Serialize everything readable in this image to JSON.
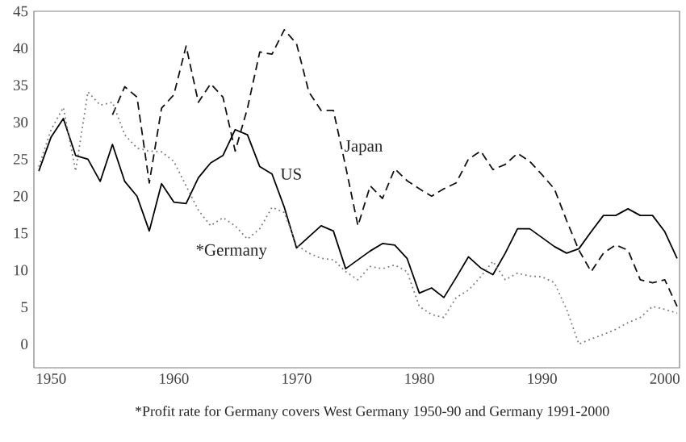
{
  "chart_data": {
    "type": "line",
    "xlim": [
      1948.6,
      2001.2
    ],
    "ylim": [
      -3.2,
      45
    ],
    "xticks": [
      1950,
      1960,
      1970,
      1980,
      1990,
      2000
    ],
    "yticks": [
      0,
      5,
      10,
      15,
      20,
      25,
      30,
      35,
      40,
      45
    ],
    "grid": false,
    "legend": false,
    "marker": "none",
    "series": [
      {
        "name": "US",
        "color": "#000000",
        "line_style": "solid",
        "x": [
          1949,
          1950,
          1951,
          1952,
          1953,
          1954,
          1955,
          1956,
          1957,
          1958,
          1959,
          1960,
          1961,
          1962,
          1963,
          1964,
          1965,
          1966,
          1967,
          1968,
          1969,
          1970,
          1971,
          1972,
          1973,
          1974,
          1975,
          1976,
          1977,
          1978,
          1979,
          1980,
          1981,
          1982,
          1983,
          1984,
          1985,
          1986,
          1987,
          1988,
          1989,
          1990,
          1991,
          1992,
          1993,
          1994,
          1995,
          1996,
          1997,
          1998,
          1999,
          2000,
          2001
        ],
        "values": [
          23.4,
          28,
          30.5,
          25.5,
          25,
          22,
          27,
          22,
          20,
          15.3,
          21.7,
          19.2,
          19,
          22.5,
          24.5,
          25.5,
          29,
          28.3,
          24,
          23,
          18.5,
          13,
          14.5,
          16,
          15.3,
          10.2,
          11.4,
          12.6,
          13.6,
          13.4,
          11.6,
          6.9,
          7.6,
          6.3,
          9,
          11.8,
          10.3,
          9.4,
          12.3,
          15.6,
          15.6,
          14.4,
          13.2,
          12.3,
          12.9,
          15.2,
          17.4,
          17.4,
          18.3,
          17.4,
          17.4,
          15.2,
          11.6
        ]
      },
      {
        "name": "Japan",
        "color": "#111111",
        "line_style": "dashed",
        "x": [
          1955,
          1956,
          1957,
          1958,
          1959,
          1960,
          1961,
          1962,
          1963,
          1964,
          1965,
          1966,
          1967,
          1968,
          1969,
          1970,
          1971,
          1972,
          1973,
          1974,
          1975,
          1976,
          1977,
          1978,
          1979,
          1980,
          1981,
          1982,
          1983,
          1984,
          1985,
          1986,
          1987,
          1988,
          1989,
          1990,
          1991,
          1992,
          1993,
          1994,
          1995,
          1996,
          1997,
          1998,
          1999,
          2000,
          2001
        ],
        "values": [
          31,
          34.8,
          33.4,
          21.8,
          31.9,
          33.7,
          40.3,
          32.7,
          35.2,
          33.4,
          26.1,
          31.9,
          39.5,
          39.2,
          42.5,
          40.6,
          34.1,
          31.6,
          31.6,
          24,
          16,
          21.4,
          19.7,
          23.7,
          22.1,
          21,
          20,
          21,
          21.8,
          25,
          26.1,
          23.6,
          24.3,
          25.8,
          24.7,
          22.9,
          21,
          16.7,
          12.7,
          9.8,
          12.3,
          13.4,
          12.7,
          8.7,
          8.3,
          8.7,
          5.1
        ]
      },
      {
        "name": "*Germany",
        "color": "#7a7a7a",
        "line_style": "dotted",
        "x": [
          1949,
          1950,
          1951,
          1952,
          1953,
          1954,
          1955,
          1956,
          1957,
          1958,
          1959,
          1960,
          1961,
          1962,
          1963,
          1964,
          1965,
          1966,
          1967,
          1968,
          1969,
          1970,
          1971,
          1972,
          1973,
          1974,
          1975,
          1976,
          1977,
          1978,
          1979,
          1980,
          1981,
          1982,
          1983,
          1984,
          1985,
          1986,
          1987,
          1988,
          1989,
          1990,
          1991,
          1992,
          1993,
          1994,
          1995,
          1996,
          1997,
          1998,
          1999,
          2000,
          2001
        ],
        "values": [
          24,
          29,
          32,
          23.4,
          34.1,
          32.3,
          32.7,
          28.3,
          26.5,
          26.1,
          26,
          24.7,
          21.4,
          18.1,
          16,
          17.1,
          16,
          14.2,
          15.6,
          18.5,
          17.8,
          13.4,
          12.3,
          11.6,
          11.4,
          9.8,
          8.7,
          10.5,
          10.2,
          10.7,
          9.8,
          5.1,
          4,
          3.6,
          6.3,
          7.3,
          9.1,
          11.2,
          8.7,
          9.6,
          9.2,
          9.1,
          8.3,
          4.7,
          0,
          0.7,
          1.3,
          2,
          2.9,
          3.6,
          5.1,
          4.7,
          4.2
        ]
      }
    ],
    "annotations": [
      "*Profit rate for Germany covers West Germany 1950-90 and Germany 1991-2000"
    ]
  }
}
